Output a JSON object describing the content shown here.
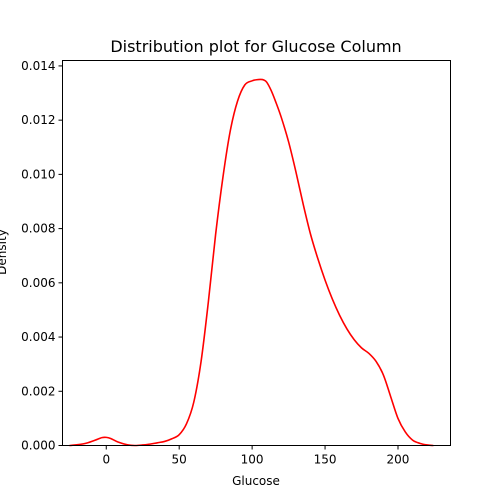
{
  "chart_data": {
    "type": "line",
    "title": "Distribution plot for Glucose Column",
    "xlabel": "Glucose",
    "ylabel": "Density",
    "xlim": [
      -30,
      236
    ],
    "ylim": [
      0,
      0.0142
    ],
    "xticks": [
      0,
      50,
      100,
      150,
      200
    ],
    "yticks": [
      0.0,
      0.002,
      0.004,
      0.006,
      0.008,
      0.01,
      0.012,
      0.014
    ],
    "xtick_labels": [
      "0",
      "50",
      "100",
      "150",
      "200"
    ],
    "ytick_labels": [
      "0.000",
      "0.002",
      "0.004",
      "0.006",
      "0.008",
      "0.010",
      "0.012",
      "0.014"
    ],
    "grid": false,
    "series": [
      {
        "color": "#ff0000",
        "x": [
          -25,
          -15,
          -8,
          -3,
          0,
          3,
          8,
          15,
          20,
          25,
          30,
          35,
          40,
          45,
          50,
          55,
          60,
          65,
          70,
          75,
          80,
          85,
          90,
          95,
          100,
          103,
          106,
          108,
          110,
          113,
          116,
          120,
          125,
          130,
          135,
          140,
          145,
          150,
          155,
          160,
          165,
          170,
          175,
          180,
          185,
          190,
          195,
          200,
          205,
          210,
          215,
          220,
          224
        ],
        "y": [
          0.0,
          7e-05,
          0.00019,
          0.00029,
          0.0003,
          0.00026,
          0.00013,
          2e-05,
          0.0,
          2e-05,
          5e-05,
          0.0001,
          0.00015,
          0.00025,
          0.0004,
          0.0008,
          0.0016,
          0.0031,
          0.0053,
          0.0078,
          0.0099,
          0.0116,
          0.0127,
          0.0133,
          0.01345,
          0.01349,
          0.0135,
          0.01348,
          0.0134,
          0.0131,
          0.0127,
          0.0121,
          0.0112,
          0.0101,
          0.0089,
          0.0078,
          0.0069,
          0.0061,
          0.0054,
          0.0048,
          0.0043,
          0.0039,
          0.0036,
          0.0034,
          0.0031,
          0.0026,
          0.0018,
          0.001,
          0.0005,
          0.0002,
          8e-05,
          2e-05,
          0.0
        ]
      }
    ]
  }
}
